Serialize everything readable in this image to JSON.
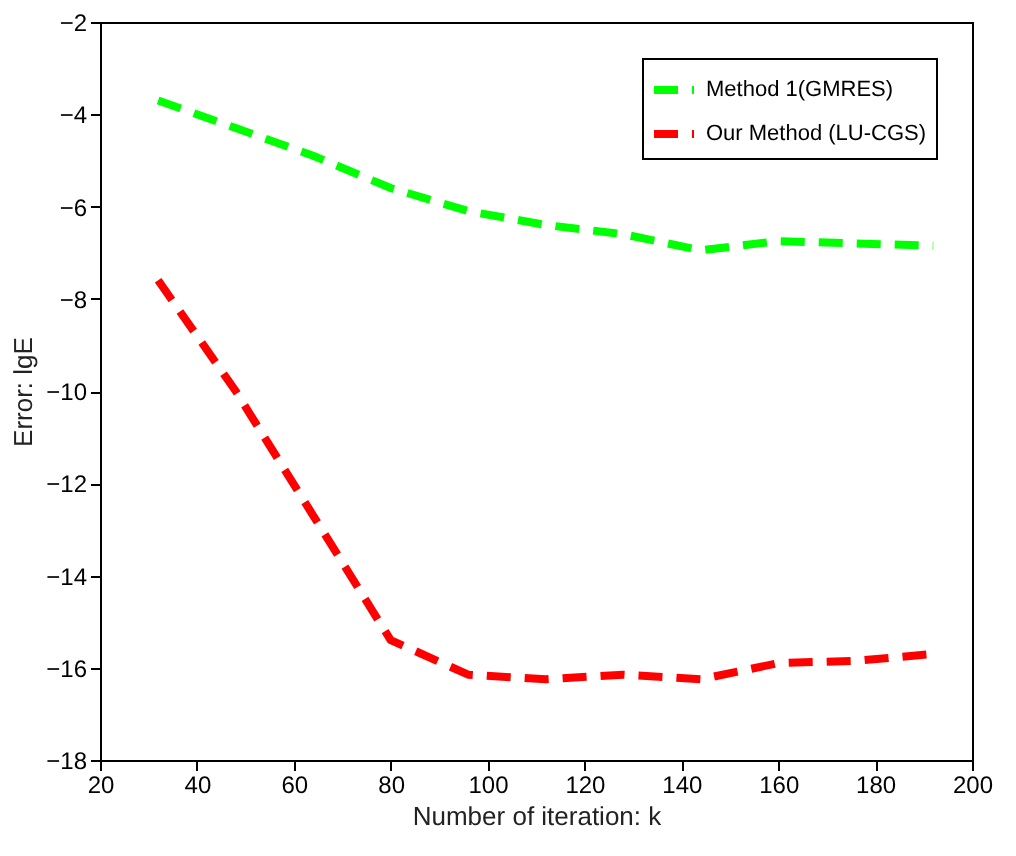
{
  "chart_data": {
    "type": "line",
    "xlabel": "Number of iteration: k",
    "ylabel": "Error: lgE",
    "x": [
      32,
      48,
      64,
      80,
      96,
      112,
      128,
      144,
      160,
      176,
      192
    ],
    "series": [
      {
        "name": "Method 1(GMRES)",
        "color": "#00ff00",
        "values": [
          -3.7,
          -4.3,
          -4.9,
          -5.6,
          -6.1,
          -6.4,
          -6.6,
          -6.95,
          -6.75,
          -6.8,
          -6.85
        ]
      },
      {
        "name": "Our Method (LU-CGS)",
        "color": "#ff0000",
        "values": [
          -7.6,
          -10.0,
          -12.7,
          -15.4,
          -16.15,
          -16.25,
          -16.15,
          -16.25,
          -15.9,
          -15.85,
          -15.7
        ]
      }
    ],
    "xlim": [
      20,
      200
    ],
    "xticks": [
      20,
      40,
      60,
      80,
      100,
      120,
      140,
      160,
      180,
      200
    ],
    "ylim": [
      -18,
      -2
    ],
    "yticks": [
      -18,
      -16,
      -14,
      -12,
      -10,
      -8,
      -6,
      -4,
      -2
    ],
    "grid": false,
    "legend": "top right",
    "line_style": "dashed",
    "marker": "none"
  }
}
